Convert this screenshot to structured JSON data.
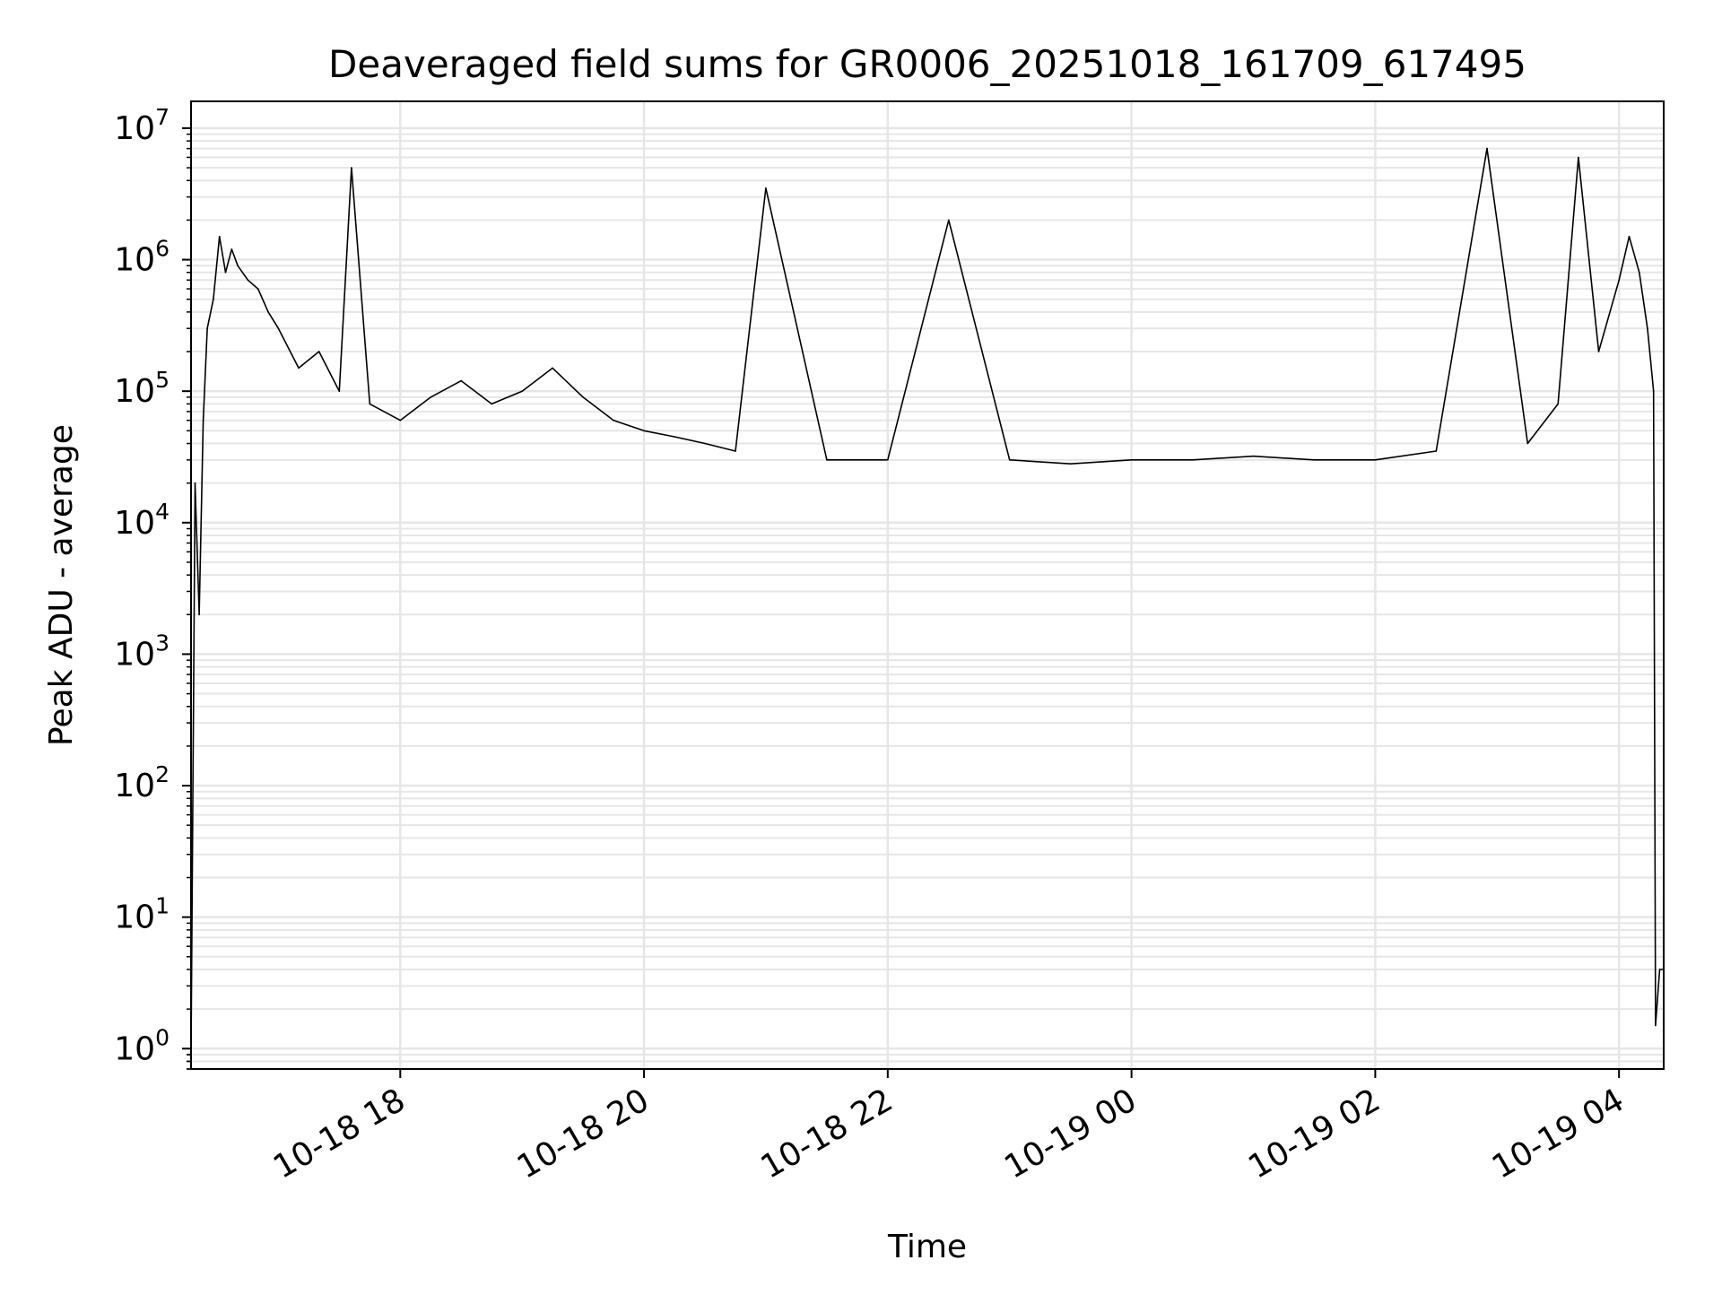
{
  "chart_data": {
    "type": "line",
    "title": "Deaveraged field sums for GR0006_20251018_161709_617495",
    "xlabel": "Time",
    "ylabel": "Peak ADU - average",
    "yscale": "log",
    "ylim": [
      0.7,
      16000000
    ],
    "xlim": [
      "2025-10-18 16:17",
      "2025-10-19 04:22"
    ],
    "grid": true,
    "line_color": "#000000",
    "grid_color": "#e6e6e6",
    "x_ticks": [
      {
        "value": "2025-10-18 18:00",
        "label": "10-18 18"
      },
      {
        "value": "2025-10-18 20:00",
        "label": "10-18 20"
      },
      {
        "value": "2025-10-18 22:00",
        "label": "10-18 22"
      },
      {
        "value": "2025-10-19 00:00",
        "label": "10-19 00"
      },
      {
        "value": "2025-10-19 02:00",
        "label": "10-19 02"
      },
      {
        "value": "2025-10-19 04:00",
        "label": "10-19 04"
      }
    ],
    "y_ticks": [
      {
        "value": 1,
        "base": "10",
        "exp": "0"
      },
      {
        "value": 10,
        "base": "10",
        "exp": "1"
      },
      {
        "value": 100,
        "base": "10",
        "exp": "2"
      },
      {
        "value": 1000,
        "base": "10",
        "exp": "3"
      },
      {
        "value": 10000,
        "base": "10",
        "exp": "4"
      },
      {
        "value": 100000,
        "base": "10",
        "exp": "5"
      },
      {
        "value": 1000000,
        "base": "10",
        "exp": "6"
      },
      {
        "value": 10000000,
        "base": "10",
        "exp": "7"
      }
    ],
    "series": [
      {
        "x": [
          "2025-10-18 16:17",
          "2025-10-18 16:19",
          "2025-10-18 16:21",
          "2025-10-18 16:23",
          "2025-10-18 16:25",
          "2025-10-18 16:28",
          "2025-10-18 16:31",
          "2025-10-18 16:34",
          "2025-10-18 16:37",
          "2025-10-18 16:40",
          "2025-10-18 16:45",
          "2025-10-18 16:50",
          "2025-10-18 16:55",
          "2025-10-18 17:00",
          "2025-10-18 17:10",
          "2025-10-18 17:20",
          "2025-10-18 17:30",
          "2025-10-18 17:36",
          "2025-10-18 17:45",
          "2025-10-18 18:00",
          "2025-10-18 18:15",
          "2025-10-18 18:30",
          "2025-10-18 18:45",
          "2025-10-18 19:00",
          "2025-10-18 19:15",
          "2025-10-18 19:30",
          "2025-10-18 19:45",
          "2025-10-18 20:00",
          "2025-10-18 20:15",
          "2025-10-18 20:30",
          "2025-10-18 20:45",
          "2025-10-18 21:00",
          "2025-10-18 21:30",
          "2025-10-18 22:00",
          "2025-10-18 22:30",
          "2025-10-18 23:00",
          "2025-10-18 23:30",
          "2025-10-19 00:00",
          "2025-10-19 00:30",
          "2025-10-19 01:00",
          "2025-10-19 01:30",
          "2025-10-19 02:00",
          "2025-10-19 02:30",
          "2025-10-19 02:55",
          "2025-10-19 03:15",
          "2025-10-19 03:30",
          "2025-10-19 03:40",
          "2025-10-19 03:50",
          "2025-10-19 04:00",
          "2025-10-19 04:05",
          "2025-10-19 04:10",
          "2025-10-19 04:14",
          "2025-10-19 04:17",
          "2025-10-19 04:18",
          "2025-10-19 04:20",
          "2025-10-19 04:22"
        ],
        "y": [
          0.9,
          20000,
          2000,
          60000,
          300000,
          500000,
          1500000,
          800000,
          1200000,
          900000,
          700000,
          600000,
          400000,
          300000,
          150000,
          200000,
          100000,
          5000000,
          80000,
          60000,
          90000,
          120000,
          80000,
          100000,
          150000,
          90000,
          60000,
          50000,
          45000,
          40000,
          35000,
          3500000,
          30000,
          30000,
          2000000,
          30000,
          28000,
          30000,
          30000,
          32000,
          30000,
          30000,
          35000,
          7000000,
          40000,
          80000,
          6000000,
          200000,
          700000,
          1500000,
          800000,
          300000,
          100000,
          1.5,
          4,
          4
        ]
      }
    ]
  }
}
